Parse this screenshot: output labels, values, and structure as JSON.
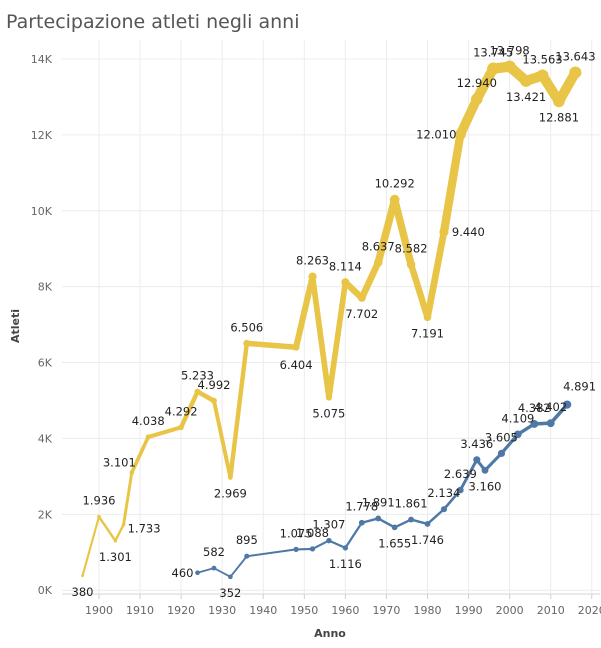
{
  "chart_data": {
    "type": "line",
    "title": "Partecipazione atleti negli anni",
    "xlabel": "Anno",
    "ylabel": "Atleti",
    "xlim": [
      1891,
      2022
    ],
    "ylim": [
      -100,
      14500
    ],
    "x_ticks": [
      1900,
      1910,
      1920,
      1930,
      1940,
      1950,
      1960,
      1970,
      1980,
      1990,
      2000,
      2010,
      2020
    ],
    "y_ticks": [
      0,
      2000,
      4000,
      6000,
      8000,
      10000,
      12000,
      14000
    ],
    "y_tick_labels": [
      "0K",
      "2K",
      "4K",
      "6K",
      "8K",
      "10K",
      "12K",
      "14K"
    ],
    "grid": true,
    "series": [
      {
        "color": "#e8c547",
        "points": [
          {
            "x": 1896,
            "y": 380,
            "label": "380"
          },
          {
            "x": 1900,
            "y": 1936,
            "label": "1.936"
          },
          {
            "x": 1904,
            "y": 1301,
            "label": "1.301"
          },
          {
            "x": 1906,
            "y": 1733,
            "label": "1.733"
          },
          {
            "x": 1908,
            "y": 3101,
            "label": "3.101"
          },
          {
            "x": 1912,
            "y": 4038,
            "label": "4.038"
          },
          {
            "x": 1920,
            "y": 4292,
            "label": "4.292"
          },
          {
            "x": 1924,
            "y": 5233,
            "label": "5.233"
          },
          {
            "x": 1928,
            "y": 4992,
            "label": "4.992"
          },
          {
            "x": 1932,
            "y": 2969,
            "label": "2.969"
          },
          {
            "x": 1936,
            "y": 6506,
            "label": "6.506"
          },
          {
            "x": 1948,
            "y": 6404,
            "label": "6.404"
          },
          {
            "x": 1952,
            "y": 8263,
            "label": "8.263"
          },
          {
            "x": 1956,
            "y": 5075,
            "label": "5.075"
          },
          {
            "x": 1960,
            "y": 8114,
            "label": "8.114"
          },
          {
            "x": 1964,
            "y": 7702,
            "label": "7.702"
          },
          {
            "x": 1968,
            "y": 8637,
            "label": "8.637"
          },
          {
            "x": 1972,
            "y": 10292,
            "label": "10.292"
          },
          {
            "x": 1976,
            "y": 8582,
            "label": "8.582"
          },
          {
            "x": 1980,
            "y": 7191,
            "label": "7.191"
          },
          {
            "x": 1984,
            "y": 9440,
            "label": "9.440"
          },
          {
            "x": 1988,
            "y": 12010,
            "label": "12.010"
          },
          {
            "x": 1992,
            "y": 12940,
            "label": "12.940"
          },
          {
            "x": 1996,
            "y": 13745,
            "label": "13.745"
          },
          {
            "x": 2000,
            "y": 13798,
            "label": "13.798"
          },
          {
            "x": 2004,
            "y": 13421,
            "label": "13.421"
          },
          {
            "x": 2008,
            "y": 13563,
            "label": "13.563"
          },
          {
            "x": 2012,
            "y": 12881,
            "label": "12.881"
          },
          {
            "x": 2016,
            "y": 13643,
            "label": "13.643"
          }
        ]
      },
      {
        "color": "#4e79a7",
        "points": [
          {
            "x": 1924,
            "y": 460,
            "label": "460"
          },
          {
            "x": 1928,
            "y": 582,
            "label": "582"
          },
          {
            "x": 1932,
            "y": 352,
            "label": "352"
          },
          {
            "x": 1936,
            "y": 895,
            "label": "895"
          },
          {
            "x": 1948,
            "y": 1075,
            "label": "1.075"
          },
          {
            "x": 1952,
            "y": 1088,
            "label": "1.088"
          },
          {
            "x": 1956,
            "y": 1307,
            "label": "1.307"
          },
          {
            "x": 1960,
            "y": 1116,
            "label": "1.116"
          },
          {
            "x": 1964,
            "y": 1778,
            "label": "1.778"
          },
          {
            "x": 1968,
            "y": 1891,
            "label": "1.891"
          },
          {
            "x": 1972,
            "y": 1655,
            "label": "1.655"
          },
          {
            "x": 1976,
            "y": 1861,
            "label": "1.861"
          },
          {
            "x": 1980,
            "y": 1746,
            "label": "1.746"
          },
          {
            "x": 1984,
            "y": 2134,
            "label": "2.134"
          },
          {
            "x": 1988,
            "y": 2639,
            "label": "2.639"
          },
          {
            "x": 1992,
            "y": 3436,
            "label": "3.436"
          },
          {
            "x": 1994,
            "y": 3160,
            "label": "3.160"
          },
          {
            "x": 1998,
            "y": 3605,
            "label": "3.605"
          },
          {
            "x": 2002,
            "y": 4109,
            "label": "4.109"
          },
          {
            "x": 2006,
            "y": 4382,
            "label": "4.382"
          },
          {
            "x": 2010,
            "y": 4402,
            "label": "4.402"
          },
          {
            "x": 2014,
            "y": 4891,
            "label": "4.891"
          }
        ]
      }
    ]
  }
}
